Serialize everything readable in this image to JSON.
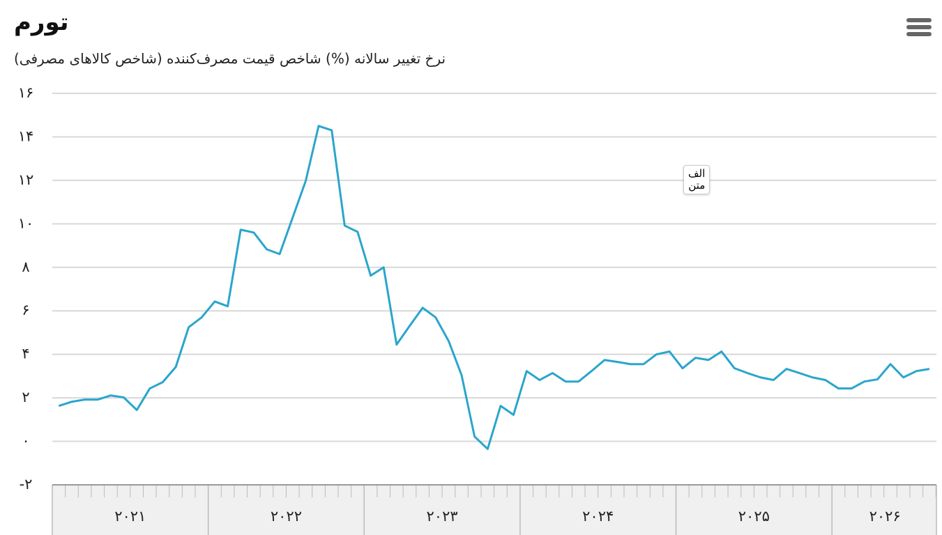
{
  "chart_data": {
    "type": "line",
    "title": "تورم",
    "subtitle": "نرخ تغییر سالانه (%) شاخص قیمت مصرف‌کننده (شاخص کالاهای مصرفی)",
    "annotation": [
      "الف",
      "متن"
    ],
    "x": [
      2021.042,
      2021.125,
      2021.208,
      2021.292,
      2021.375,
      2021.458,
      2021.542,
      2021.625,
      2021.708,
      2021.792,
      2021.875,
      2021.958,
      2022.042,
      2022.125,
      2022.208,
      2022.292,
      2022.375,
      2022.458,
      2022.542,
      2022.625,
      2022.708,
      2022.792,
      2022.875,
      2022.958,
      2023.042,
      2023.125,
      2023.208,
      2023.292,
      2023.375,
      2023.458,
      2023.542,
      2023.625,
      2023.708,
      2023.792,
      2023.875,
      2023.958,
      2024.042,
      2024.125,
      2024.208,
      2024.292,
      2024.375,
      2024.458,
      2024.542,
      2024.625,
      2024.708,
      2024.792,
      2024.875,
      2024.958,
      2025.042,
      2025.125,
      2025.208,
      2025.292,
      2025.375,
      2025.458,
      2025.542,
      2025.625,
      2025.708,
      2025.792,
      2025.875,
      2025.958,
      2026.042,
      2026.125,
      2026.208,
      2026.292,
      2026.375,
      2026.458,
      2026.542,
      2026.625
    ],
    "series": [
      {
        "color": "#2aa5cc",
        "values": [
          1.63,
          1.82,
          1.92,
          1.92,
          2.11,
          2.02,
          1.44,
          2.43,
          2.72,
          3.42,
          5.25,
          5.7,
          6.43,
          6.21,
          9.73,
          9.6,
          8.83,
          8.61,
          10.3,
          11.97,
          14.5,
          14.3,
          9.92,
          9.63,
          7.62,
          8.0,
          4.45,
          5.31,
          6.14,
          5.7,
          4.61,
          3.04,
          0.22,
          -0.35,
          1.63,
          1.22,
          3.23,
          2.82,
          3.14,
          2.75,
          2.75,
          3.23,
          3.74,
          3.65,
          3.55,
          3.55,
          4.0,
          4.13,
          3.36,
          3.84,
          3.74,
          4.13,
          3.36,
          3.14,
          2.94,
          2.82,
          3.33,
          3.14,
          2.94,
          2.82,
          2.43,
          2.43,
          2.75,
          2.85,
          3.55,
          2.94,
          3.23,
          3.33
        ]
      }
    ],
    "xlim": [
      2021,
      2026.67
    ],
    "xticks": [
      {
        "value": 2021.5,
        "label": "۲۰۲۱"
      },
      {
        "value": 2022.5,
        "label": "۲۰۲۲"
      },
      {
        "value": 2023.5,
        "label": "۲۰۲۳"
      },
      {
        "value": 2024.5,
        "label": "۲۰۲۴"
      },
      {
        "value": 2025.5,
        "label": "۲۰۲۵"
      },
      {
        "value": 2026.34,
        "label": "۲۰۲۶"
      }
    ],
    "ylim": [
      -2,
      16
    ],
    "yticks": [
      {
        "value": -2,
        "label": "-۲"
      },
      {
        "value": 0,
        "label": "۰"
      },
      {
        "value": 2,
        "label": "۲"
      },
      {
        "value": 4,
        "label": "۴"
      },
      {
        "value": 6,
        "label": "۶"
      },
      {
        "value": 8,
        "label": "۸"
      },
      {
        "value": 10,
        "label": "۱۰"
      },
      {
        "value": 12,
        "label": "۱۲"
      },
      {
        "value": 14,
        "label": "۱۴"
      },
      {
        "value": 16,
        "label": "۱۶"
      }
    ],
    "grid": true
  }
}
